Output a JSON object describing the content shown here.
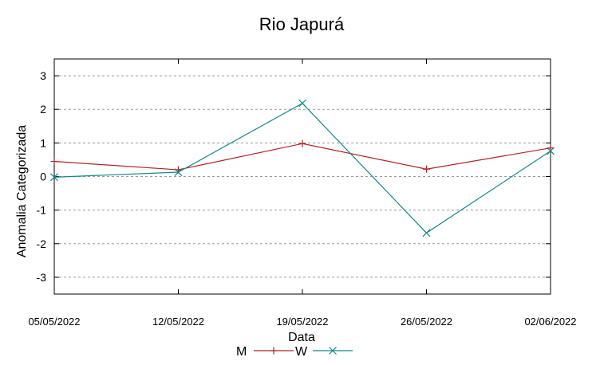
{
  "chart_data": {
    "type": "line",
    "title": "Rio Japurá",
    "xlabel": "Data",
    "ylabel": "Anomalia Categorizada",
    "categories": [
      "05/05/2022",
      "12/05/2022",
      "19/05/2022",
      "26/05/2022",
      "02/06/2022"
    ],
    "ylim": [
      -3.5,
      3.5
    ],
    "yticks": [
      -3,
      -2,
      -1,
      0,
      1,
      2,
      3
    ],
    "grid": "horizontal dashed",
    "legend_position": "bottom-center",
    "series": [
      {
        "name": "M",
        "color": "#b22222",
        "marker": "plus",
        "values": [
          0.45,
          0.2,
          0.98,
          0.22,
          0.85
        ]
      },
      {
        "name": "W",
        "color": "#138a8a",
        "marker": "cross",
        "values": [
          -0.02,
          0.13,
          2.18,
          -1.68,
          0.76
        ]
      }
    ]
  }
}
